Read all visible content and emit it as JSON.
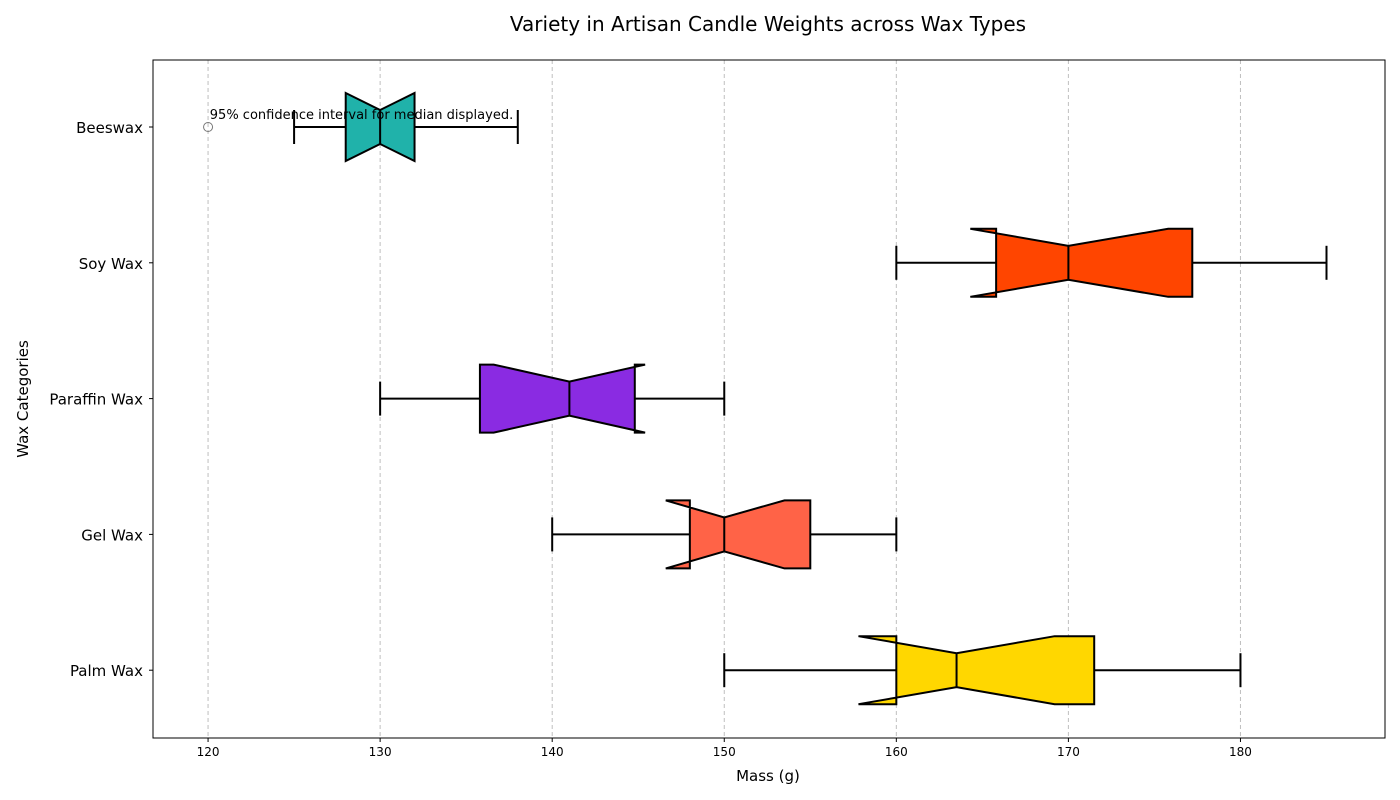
{
  "chart_data": {
    "type": "boxplot",
    "orientation": "horizontal",
    "notched": true,
    "title": "Variety in Artisan Candle Weights across Wax Types",
    "xlabel": "Mass (g)",
    "ylabel": "Wax Categories",
    "xlim": [
      116.8,
      188.4
    ],
    "xticks": [
      120,
      130,
      140,
      150,
      160,
      170,
      180
    ],
    "grid": {
      "x": true,
      "y": false,
      "style": "dashed"
    },
    "annotation": {
      "text": "95% confidence interval for median displayed.",
      "x": 120.1,
      "category": "Beeswax"
    },
    "series": [
      {
        "category": "Beeswax",
        "whisker_low": 125,
        "q1": 128,
        "median": 130,
        "q3": 132,
        "whisker_high": 138,
        "notch_low": 128,
        "notch_high": 132,
        "outliers": [
          120
        ],
        "color": "#20B2AA"
      },
      {
        "category": "Soy Wax",
        "whisker_low": 160,
        "q1": 165.8,
        "median": 170,
        "q3": 177.2,
        "whisker_high": 185,
        "notch_low": 164.3,
        "notch_high": 175.8,
        "outliers": [],
        "color": "#FF4500"
      },
      {
        "category": "Paraffin Wax",
        "whisker_low": 130,
        "q1": 135.8,
        "median": 141,
        "q3": 144.8,
        "whisker_high": 150,
        "notch_low": 136.6,
        "notch_high": 145.4,
        "outliers": [],
        "color": "#8A2BE2"
      },
      {
        "category": "Gel Wax",
        "whisker_low": 140,
        "q1": 148,
        "median": 150,
        "q3": 155,
        "whisker_high": 160,
        "notch_low": 146.6,
        "notch_high": 153.5,
        "outliers": [],
        "color": "#FF6347"
      },
      {
        "category": "Palm Wax",
        "whisker_low": 150,
        "q1": 160,
        "median": 163.5,
        "q3": 171.5,
        "whisker_high": 180,
        "notch_low": 157.8,
        "notch_high": 169.2,
        "outliers": [],
        "color": "#FFD700"
      }
    ]
  }
}
